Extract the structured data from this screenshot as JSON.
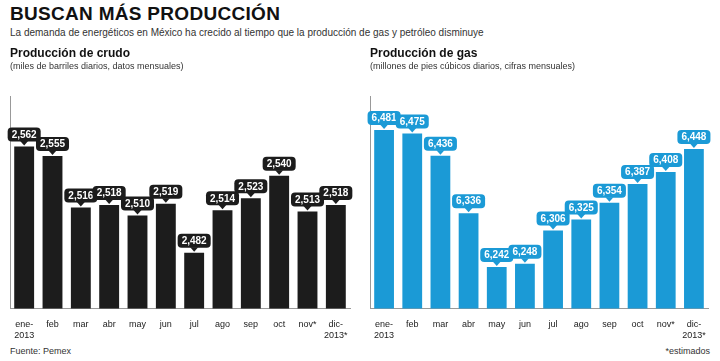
{
  "title": "BUSCAN MÁS PRODUCCIÓN",
  "subtitle": "La demanda de energéticos en México ha crecido al tiempo que la producción de gas y petróleo disminuye",
  "source": "Fuente: Pemex",
  "note": "*estimados",
  "chart_data": [
    {
      "type": "bar",
      "title": "Producción de crudo",
      "subtitle": "(miles de barriles diarios, datos mensuales)",
      "categories": [
        "ene-2013",
        "feb",
        "mar",
        "abr",
        "may",
        "jun",
        "jul",
        "ago",
        "sep",
        "oct",
        "nov*",
        "dic-2013*"
      ],
      "values": [
        2562,
        2555,
        2516,
        2518,
        2510,
        2519,
        2482,
        2514,
        2523,
        2540,
        2513,
        2518
      ],
      "value_labels": [
        "2,562",
        "2,555",
        "2,516",
        "2,518",
        "2,510",
        "2,519",
        "2,482",
        "2,514",
        "2,523",
        "2,540",
        "2,513",
        "2,518"
      ],
      "color": "#1c1c1c",
      "ylim": [
        2440,
        2600
      ],
      "grid": false,
      "data_labels": true,
      "tick_labels": "x"
    },
    {
      "type": "bar",
      "title": "Producción de gas",
      "subtitle": "(millones de pies cúbicos diarios, cifras mensuales)",
      "categories": [
        "ene-2013",
        "feb",
        "mar",
        "abr",
        "may",
        "jun",
        "jul",
        "ago",
        "sep",
        "oct",
        "nov*",
        "dic-2013*"
      ],
      "values": [
        6481,
        6475,
        6436,
        6336,
        6242,
        6248,
        6306,
        6325,
        6354,
        6387,
        6408,
        6448
      ],
      "value_labels": [
        "6,481",
        "6,475",
        "6,436",
        "6,336",
        "6,242",
        "6,248",
        "6,306",
        "6,325",
        "6,354",
        "6,387",
        "6,408",
        "6,448"
      ],
      "color": "#1b9ad6",
      "ylim": [
        6170,
        6540
      ],
      "grid": false,
      "data_labels": true,
      "tick_labels": "x"
    }
  ]
}
